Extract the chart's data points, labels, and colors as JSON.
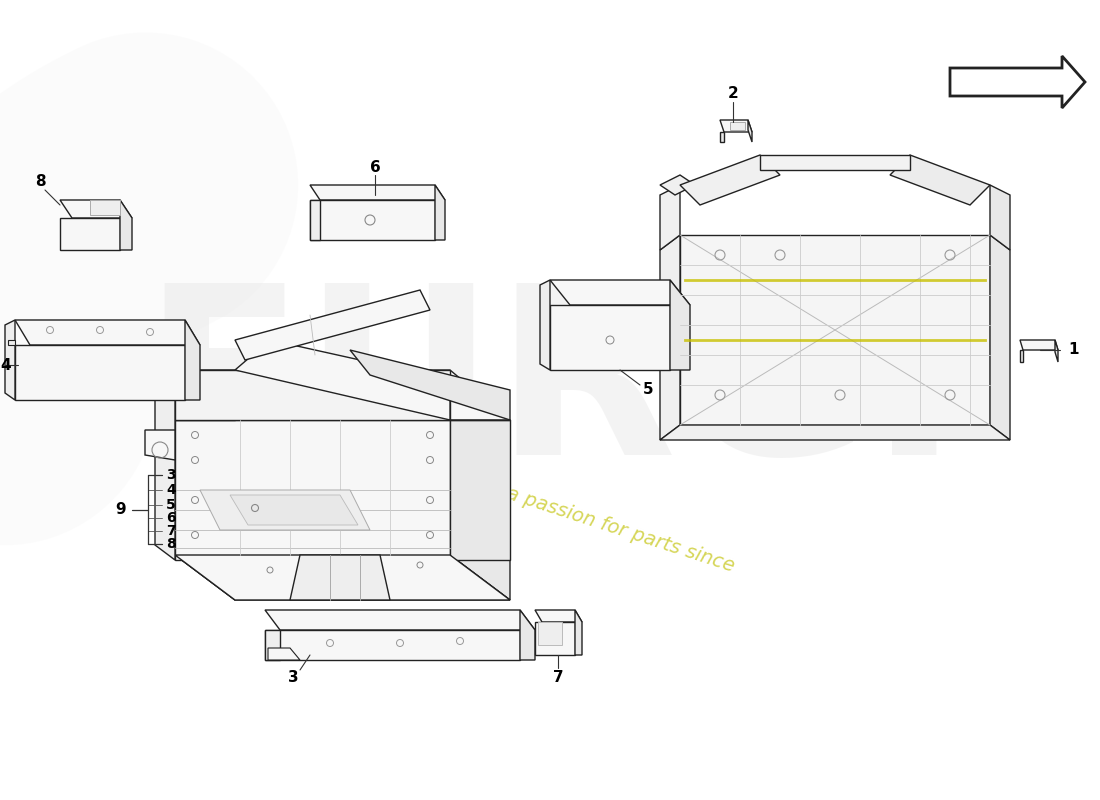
{
  "bg_color": "#ffffff",
  "lc": "#222222",
  "fl": "#f7f7f7",
  "fm": "#e8e8e8",
  "fd": "#dedede",
  "yellow": "#d4d400",
  "wm_gray": "#e0e0e0",
  "wm_text_color": "#d0d0c0",
  "fig_w": 11.0,
  "fig_h": 8.0,
  "dpi": 100
}
